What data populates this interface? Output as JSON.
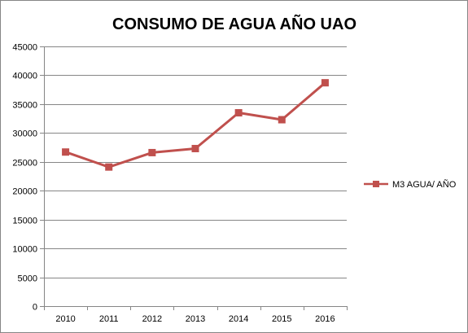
{
  "chart_data": {
    "type": "line",
    "title": "CONSUMO DE AGUA AÑO UAO",
    "xlabel": "",
    "ylabel": "",
    "categories": [
      "2010",
      "2011",
      "2012",
      "2013",
      "2014",
      "2015",
      "2016"
    ],
    "series": [
      {
        "name": "M3 AGUA/ AÑO",
        "values": [
          26700,
          24100,
          26600,
          27300,
          33500,
          32300,
          38700
        ],
        "color": "#c0504d"
      }
    ],
    "ylim": [
      0,
      45000
    ],
    "yticks": [
      "0",
      "5000",
      "10000",
      "15000",
      "20000",
      "25000",
      "30000",
      "35000",
      "40000",
      "45000"
    ],
    "grid": true,
    "legend_position": "right",
    "marker": "square"
  }
}
